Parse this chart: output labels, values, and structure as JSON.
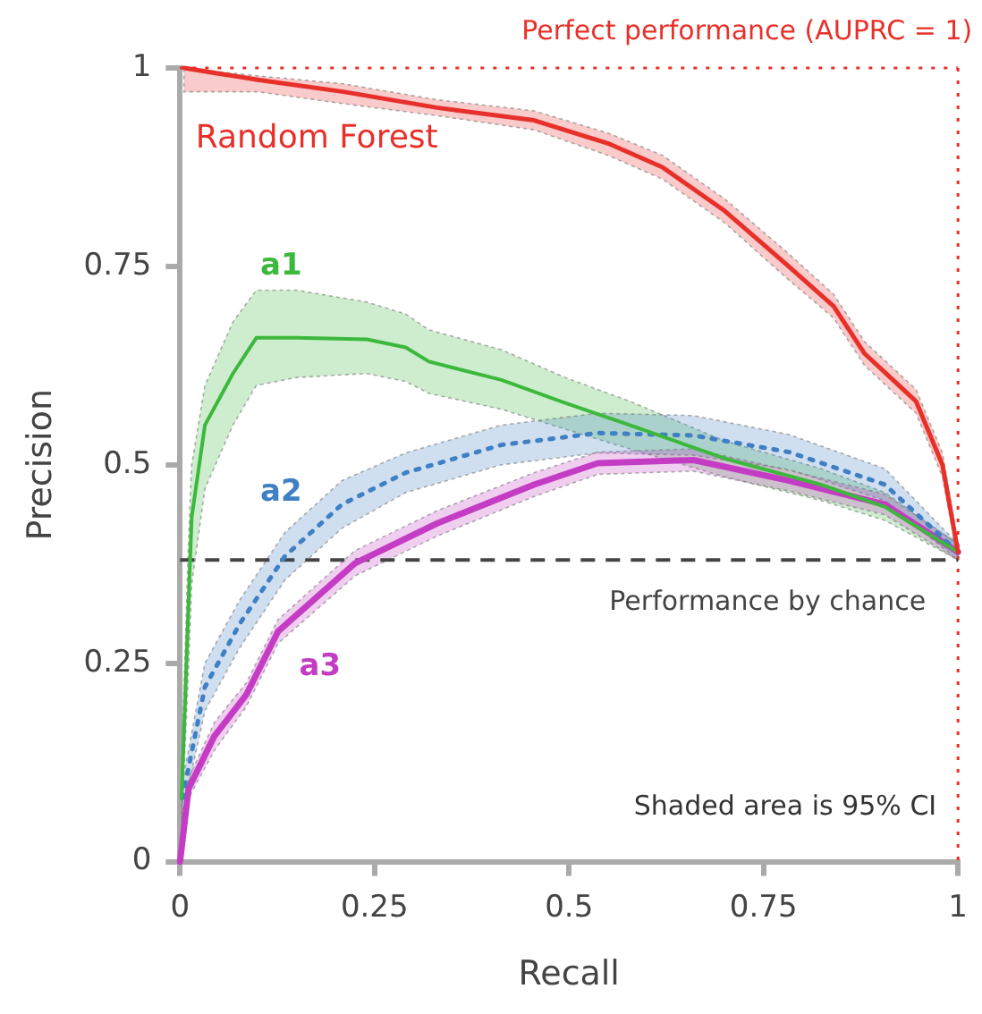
{
  "chart_data": {
    "type": "line",
    "xlabel": "Recall",
    "ylabel": "Precision",
    "xlim": [
      0,
      1
    ],
    "ylim": [
      0,
      1
    ],
    "xticks": [
      0,
      0.25,
      0.5,
      0.75,
      1
    ],
    "yticks": [
      0,
      0.25,
      0.5,
      0.75,
      1
    ],
    "grid": false,
    "legend": false,
    "marker": "none",
    "series": [
      {
        "name": "Random Forest",
        "color": "#e8302a",
        "line_style": "solid",
        "x": [
          0.005,
          0.1,
          0.21,
          0.33,
          0.455,
          0.55,
          0.62,
          0.7,
          0.78,
          0.84,
          0.88,
          0.946,
          0.98,
          1
        ],
        "values": [
          1,
          0.985,
          0.97,
          0.95,
          0.934,
          0.905,
          0.875,
          0.82,
          0.752,
          0.7,
          0.64,
          0.58,
          0.5,
          0.39
        ],
        "lower": [
          0.97,
          0.97,
          0.955,
          0.94,
          0.922,
          0.89,
          0.86,
          0.805,
          0.735,
          0.685,
          0.625,
          0.565,
          0.485,
          0.38
        ],
        "upper": [
          1,
          0.99,
          0.98,
          0.96,
          0.946,
          0.918,
          0.89,
          0.835,
          0.768,
          0.715,
          0.655,
          0.595,
          0.515,
          0.4
        ]
      },
      {
        "name": "a1",
        "color": "#3cb83c",
        "line_style": "solid",
        "x": [
          0.002,
          0.01,
          0.015,
          0.032,
          0.068,
          0.098,
          0.15,
          0.24,
          0.29,
          0.32,
          0.413,
          0.495,
          0.578,
          0.7,
          0.824,
          0.906,
          1
        ],
        "values": [
          0.08,
          0.3,
          0.434,
          0.55,
          0.615,
          0.66,
          0.66,
          0.658,
          0.648,
          0.63,
          0.607,
          0.578,
          0.55,
          0.508,
          0.475,
          0.447,
          0.39
        ],
        "lower": [
          0.05,
          0.22,
          0.35,
          0.47,
          0.55,
          0.6,
          0.61,
          0.615,
          0.605,
          0.59,
          0.57,
          0.545,
          0.52,
          0.485,
          0.455,
          0.43,
          0.38
        ],
        "upper": [
          0.11,
          0.38,
          0.5,
          0.6,
          0.68,
          0.72,
          0.72,
          0.705,
          0.69,
          0.67,
          0.645,
          0.61,
          0.58,
          0.53,
          0.495,
          0.465,
          0.4
        ]
      },
      {
        "name": "a2",
        "color": "#3f7fc4",
        "line_style": "dotted",
        "x": [
          0.003,
          0.032,
          0.077,
          0.135,
          0.208,
          0.29,
          0.413,
          0.537,
          0.66,
          0.783,
          0.906,
          1
        ],
        "values": [
          0.08,
          0.22,
          0.3,
          0.385,
          0.45,
          0.49,
          0.525,
          0.54,
          0.537,
          0.516,
          0.475,
          0.39
        ],
        "lower": [
          0.06,
          0.19,
          0.27,
          0.355,
          0.42,
          0.465,
          0.5,
          0.515,
          0.512,
          0.494,
          0.455,
          0.38
        ],
        "upper": [
          0.1,
          0.25,
          0.33,
          0.415,
          0.48,
          0.515,
          0.55,
          0.565,
          0.562,
          0.538,
          0.495,
          0.4
        ]
      },
      {
        "name": "a3",
        "color": "#c43cc4",
        "line_style": "solid",
        "x": [
          0,
          0.011,
          0.044,
          0.085,
          0.126,
          0.225,
          0.33,
          0.455,
          0.537,
          0.66,
          0.783,
          0.906,
          1
        ],
        "values": [
          0,
          0.092,
          0.158,
          0.21,
          0.29,
          0.376,
          0.426,
          0.475,
          0.502,
          0.506,
          0.48,
          0.45,
          0.39
        ],
        "lower": [
          0,
          0.08,
          0.14,
          0.195,
          0.275,
          0.36,
          0.41,
          0.46,
          0.488,
          0.492,
          0.467,
          0.437,
          0.38
        ],
        "upper": [
          0,
          0.105,
          0.175,
          0.225,
          0.305,
          0.392,
          0.442,
          0.49,
          0.516,
          0.52,
          0.493,
          0.463,
          0.4
        ]
      }
    ],
    "ref_lines": [
      {
        "axis": "y",
        "value": 1,
        "label": "Perfect performance (AUPRC = 1)",
        "color": "#e8302a",
        "line_style": "dotted"
      },
      {
        "axis": "x",
        "value": 1,
        "color": "#e8302a",
        "line_style": "dotted"
      },
      {
        "axis": "y",
        "value": 0.38,
        "label": "Performance by chance",
        "color": "#444444",
        "line_style": "dashed"
      }
    ],
    "annotations": [
      "Shaded area is 95% CI"
    ]
  }
}
